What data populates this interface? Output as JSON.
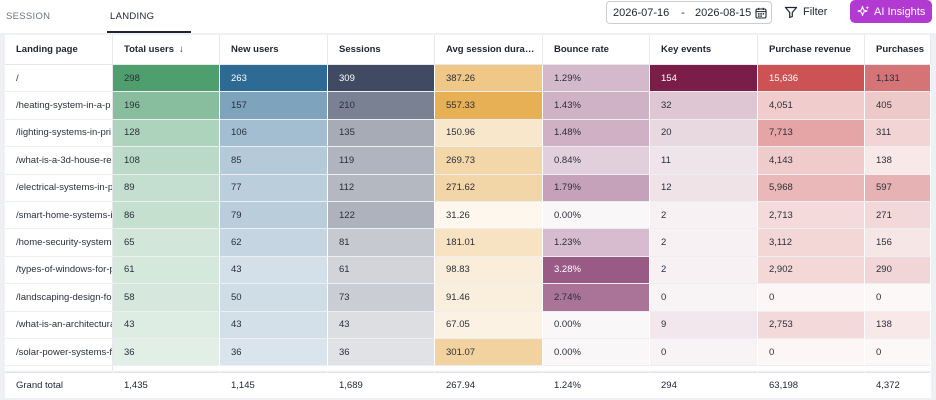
{
  "tabs": [
    {
      "label": "SESSION SOURCES",
      "active": false
    },
    {
      "label": "LANDING PAGES",
      "active": true
    }
  ],
  "date_range": {
    "start": "2026-07-16",
    "separator": "-",
    "end": "2026-08-15"
  },
  "filter_label": "Filter",
  "ai_label": "AI Insights",
  "columns": [
    "Landing page",
    "Total users",
    "New users",
    "Sessions",
    "Avg session dura…",
    "Bounce rate",
    "Key events",
    "Purchase revenue",
    "Purchases"
  ],
  "sort_indicator": "↓",
  "rows": [
    [
      "/",
      "298",
      "263",
      "309",
      "387.26",
      "1.29%",
      "154",
      "15,636",
      "1,131"
    ],
    [
      "/heating-system-in-a-p",
      "196",
      "157",
      "210",
      "557.33",
      "1.43%",
      "32",
      "4,051",
      "405"
    ],
    [
      "/lighting-systems-in-pri",
      "128",
      "106",
      "135",
      "150.96",
      "1.48%",
      "20",
      "7,713",
      "311"
    ],
    [
      "/what-is-a-3d-house-re",
      "108",
      "85",
      "119",
      "269.73",
      "0.84%",
      "11",
      "4,143",
      "138"
    ],
    [
      "/electrical-systems-in-p",
      "89",
      "77",
      "112",
      "271.62",
      "1.79%",
      "12",
      "5,968",
      "597"
    ],
    [
      "/smart-home-systems-i",
      "86",
      "79",
      "122",
      "31.26",
      "0.00%",
      "2",
      "2,713",
      "271"
    ],
    [
      "/home-security-systems",
      "65",
      "62",
      "81",
      "181.01",
      "1.23%",
      "2",
      "3,112",
      "156"
    ],
    [
      "/types-of-windows-for-p",
      "61",
      "43",
      "61",
      "98.83",
      "3.28%",
      "2",
      "2,902",
      "290"
    ],
    [
      "/landscaping-design-fo",
      "58",
      "50",
      "73",
      "91.46",
      "2.74%",
      "0",
      "0",
      "0"
    ],
    [
      "/what-is-an-architectura",
      "43",
      "43",
      "43",
      "67.05",
      "0.00%",
      "9",
      "2,753",
      "138"
    ],
    [
      "/solar-power-systems-fo",
      "36",
      "36",
      "36",
      "301.07",
      "0.00%",
      "0",
      "0",
      "0"
    ]
  ],
  "grand_total": [
    "Grand total",
    "1,435",
    "1,145",
    "1,689",
    "267.94",
    "1.24%",
    "294",
    "63,198",
    "4,372"
  ],
  "heat_colors": [
    "",
    "#4f9f6e",
    "#2d6a94",
    "#404a62",
    "#e8b054",
    "#9a5a86",
    "#7a1e49",
    "#cd5254",
    "#d47476"
  ]
}
